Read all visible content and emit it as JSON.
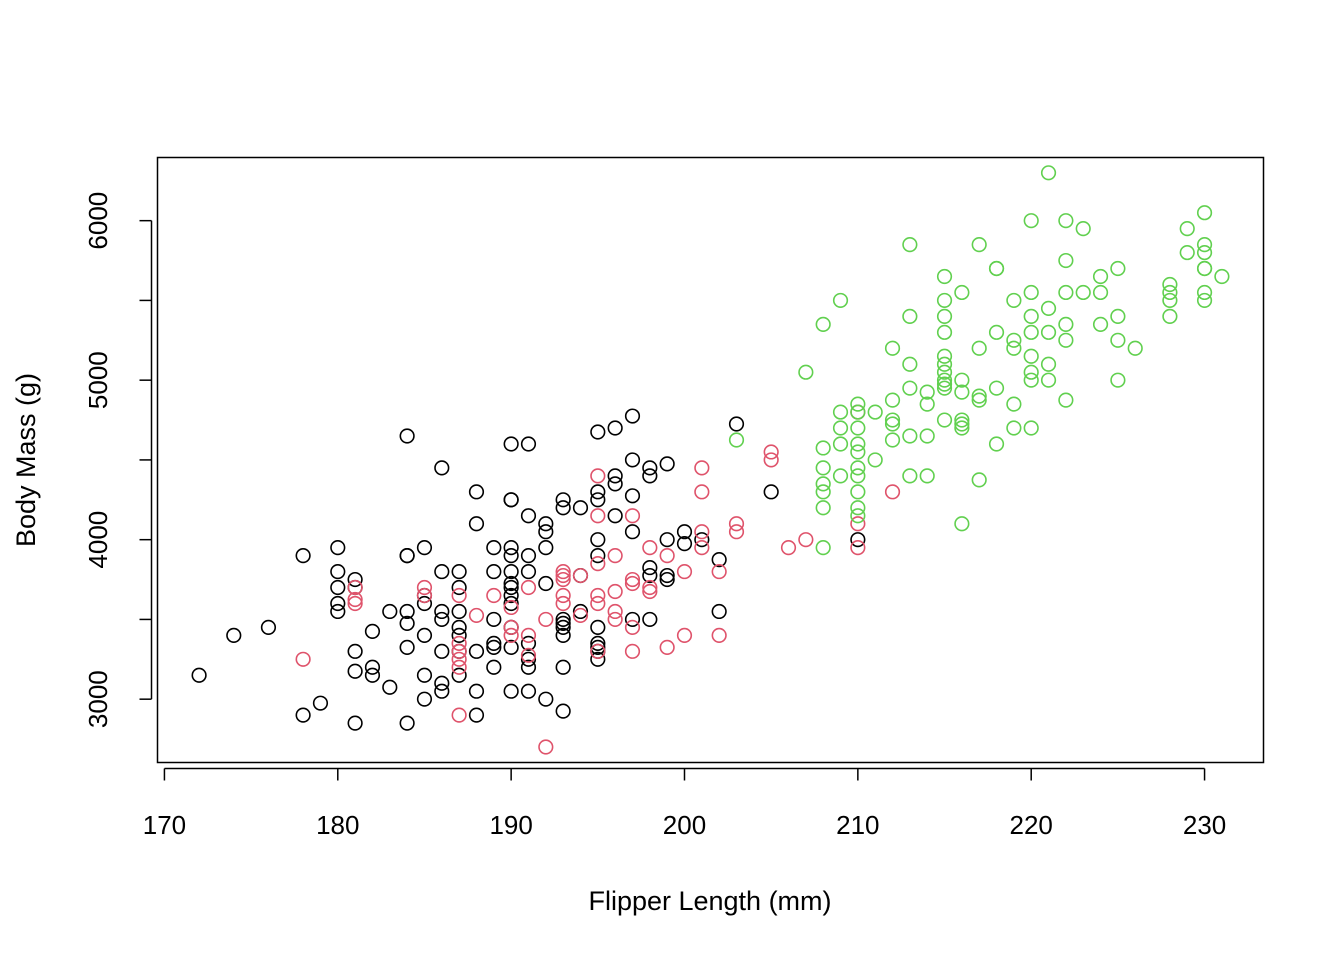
{
  "chart_data": {
    "type": "scatter",
    "title": "",
    "xlabel": "Flipper Length (mm)",
    "ylabel": "Body Mass (g)",
    "xlim": [
      169.6,
      233.4
    ],
    "ylim": [
      2603,
      6396
    ],
    "xticks": [
      170,
      180,
      190,
      200,
      210,
      220,
      230
    ],
    "yticks": [
      3000,
      4000,
      5000,
      6000
    ],
    "xtick_labels": [
      "170",
      "180",
      "190",
      "200",
      "210",
      "220",
      "230"
    ],
    "ytick_labels": [
      "3000",
      "4000",
      "5000",
      "6000"
    ],
    "grid": false,
    "legend": "none",
    "marker": "open-circle",
    "series": [
      {
        "color": "#000000",
        "points": [
          [
            172,
            3150
          ],
          [
            174,
            3400
          ],
          [
            176,
            3450
          ],
          [
            178,
            3900
          ],
          [
            178,
            2900
          ],
          [
            179,
            2975
          ],
          [
            180,
            3950
          ],
          [
            180,
            3800
          ],
          [
            180,
            3700
          ],
          [
            180,
            3600
          ],
          [
            180,
            3550
          ],
          [
            181,
            3750
          ],
          [
            181,
            3700
          ],
          [
            181,
            3300
          ],
          [
            181,
            3175
          ],
          [
            181,
            2850
          ],
          [
            182,
            3425
          ],
          [
            182,
            3200
          ],
          [
            182,
            3150
          ],
          [
            183,
            3550
          ],
          [
            183,
            3075
          ],
          [
            184,
            4650
          ],
          [
            184,
            3900
          ],
          [
            184,
            3900
          ],
          [
            184,
            3550
          ],
          [
            184,
            3475
          ],
          [
            184,
            3325
          ],
          [
            184,
            2850
          ],
          [
            185,
            3950
          ],
          [
            185,
            3650
          ],
          [
            185,
            3600
          ],
          [
            185,
            3400
          ],
          [
            185,
            3150
          ],
          [
            185,
            3000
          ],
          [
            186,
            4450
          ],
          [
            186,
            3800
          ],
          [
            186,
            3550
          ],
          [
            186,
            3500
          ],
          [
            186,
            3300
          ],
          [
            186,
            3100
          ],
          [
            186,
            3050
          ],
          [
            187,
            3800
          ],
          [
            187,
            3700
          ],
          [
            187,
            3550
          ],
          [
            187,
            3450
          ],
          [
            187,
            3400
          ],
          [
            187,
            3300
          ],
          [
            187,
            3150
          ],
          [
            188,
            4300
          ],
          [
            188,
            4100
          ],
          [
            188,
            3300
          ],
          [
            188,
            3050
          ],
          [
            188,
            2900
          ],
          [
            189,
            3950
          ],
          [
            189,
            3800
          ],
          [
            189,
            3500
          ],
          [
            189,
            3350
          ],
          [
            189,
            3325
          ],
          [
            189,
            3200
          ],
          [
            190,
            4600
          ],
          [
            190,
            4250
          ],
          [
            190,
            4250
          ],
          [
            190,
            3950
          ],
          [
            190,
            3900
          ],
          [
            190,
            3800
          ],
          [
            190,
            3725
          ],
          [
            190,
            3700
          ],
          [
            190,
            3650
          ],
          [
            190,
            3600
          ],
          [
            190,
            3450
          ],
          [
            190,
            3325
          ],
          [
            190,
            3050
          ],
          [
            191,
            4600
          ],
          [
            191,
            4150
          ],
          [
            191,
            3900
          ],
          [
            191,
            3800
          ],
          [
            191,
            3350
          ],
          [
            191,
            3250
          ],
          [
            191,
            3200
          ],
          [
            191,
            3050
          ],
          [
            192,
            4100
          ],
          [
            192,
            4050
          ],
          [
            192,
            3950
          ],
          [
            192,
            3725
          ],
          [
            192,
            3000
          ],
          [
            193,
            4250
          ],
          [
            193,
            4200
          ],
          [
            193,
            3500
          ],
          [
            193,
            3475
          ],
          [
            193,
            3450
          ],
          [
            193,
            3400
          ],
          [
            193,
            3200
          ],
          [
            193,
            2925
          ],
          [
            194,
            4200
          ],
          [
            194,
            3775
          ],
          [
            194,
            3550
          ],
          [
            195,
            4675
          ],
          [
            195,
            4300
          ],
          [
            195,
            4250
          ],
          [
            195,
            4000
          ],
          [
            195,
            3900
          ],
          [
            195,
            3450
          ],
          [
            195,
            3350
          ],
          [
            195,
            3325
          ],
          [
            195,
            3300
          ],
          [
            195,
            3250
          ],
          [
            196,
            4700
          ],
          [
            196,
            4400
          ],
          [
            196,
            4350
          ],
          [
            196,
            4150
          ],
          [
            197,
            4775
          ],
          [
            197,
            4500
          ],
          [
            197,
            4275
          ],
          [
            197,
            4050
          ],
          [
            197,
            3500
          ],
          [
            198,
            4450
          ],
          [
            198,
            4400
          ],
          [
            198,
            3825
          ],
          [
            198,
            3775
          ],
          [
            198,
            3500
          ],
          [
            199,
            4475
          ],
          [
            199,
            4000
          ],
          [
            199,
            3775
          ],
          [
            199,
            3750
          ],
          [
            200,
            4050
          ],
          [
            200,
            3975
          ],
          [
            201,
            4000
          ],
          [
            202,
            3875
          ],
          [
            202,
            3550
          ],
          [
            203,
            4725
          ],
          [
            205,
            4300
          ],
          [
            210,
            4000
          ]
        ]
      },
      {
        "color": "#DF536B",
        "points": [
          [
            178,
            3250
          ],
          [
            181,
            3700
          ],
          [
            181,
            3625
          ],
          [
            181,
            3600
          ],
          [
            185,
            3700
          ],
          [
            185,
            3650
          ],
          [
            187,
            3650
          ],
          [
            187,
            3350
          ],
          [
            187,
            3300
          ],
          [
            187,
            3250
          ],
          [
            187,
            3200
          ],
          [
            187,
            2900
          ],
          [
            188,
            3525
          ],
          [
            189,
            3650
          ],
          [
            190,
            3575
          ],
          [
            190,
            3450
          ],
          [
            190,
            3400
          ],
          [
            191,
            3700
          ],
          [
            191,
            3400
          ],
          [
            191,
            3275
          ],
          [
            192,
            3500
          ],
          [
            192,
            2700
          ],
          [
            193,
            3800
          ],
          [
            193,
            3775
          ],
          [
            193,
            3750
          ],
          [
            193,
            3650
          ],
          [
            193,
            3600
          ],
          [
            194,
            3775
          ],
          [
            194,
            3525
          ],
          [
            195,
            4400
          ],
          [
            195,
            4150
          ],
          [
            195,
            3850
          ],
          [
            195,
            3650
          ],
          [
            195,
            3600
          ],
          [
            195,
            3300
          ],
          [
            196,
            3900
          ],
          [
            196,
            3675
          ],
          [
            196,
            3550
          ],
          [
            196,
            3500
          ],
          [
            197,
            4150
          ],
          [
            197,
            3750
          ],
          [
            197,
            3725
          ],
          [
            197,
            3450
          ],
          [
            197,
            3300
          ],
          [
            198,
            3950
          ],
          [
            198,
            3700
          ],
          [
            198,
            3675
          ],
          [
            199,
            3900
          ],
          [
            199,
            3325
          ],
          [
            200,
            3800
          ],
          [
            200,
            3400
          ],
          [
            201,
            4450
          ],
          [
            201,
            4300
          ],
          [
            201,
            4050
          ],
          [
            201,
            3950
          ],
          [
            202,
            3800
          ],
          [
            202,
            3400
          ],
          [
            203,
            4100
          ],
          [
            203,
            4050
          ],
          [
            205,
            4550
          ],
          [
            205,
            4500
          ],
          [
            206,
            3950
          ],
          [
            207,
            4000
          ],
          [
            210,
            4800
          ],
          [
            210,
            4100
          ],
          [
            210,
            3950
          ],
          [
            212,
            4300
          ]
        ]
      },
      {
        "color": "#61D04F",
        "points": [
          [
            203,
            4625
          ],
          [
            207,
            5050
          ],
          [
            208,
            5350
          ],
          [
            208,
            4575
          ],
          [
            208,
            4450
          ],
          [
            208,
            4350
          ],
          [
            208,
            4300
          ],
          [
            208,
            4200
          ],
          [
            208,
            3950
          ],
          [
            209,
            5500
          ],
          [
            209,
            4800
          ],
          [
            209,
            4700
          ],
          [
            209,
            4600
          ],
          [
            209,
            4400
          ],
          [
            210,
            4850
          ],
          [
            210,
            4800
          ],
          [
            210,
            4700
          ],
          [
            210,
            4600
          ],
          [
            210,
            4550
          ],
          [
            210,
            4450
          ],
          [
            210,
            4400
          ],
          [
            210,
            4300
          ],
          [
            210,
            4200
          ],
          [
            210,
            4150
          ],
          [
            211,
            4800
          ],
          [
            211,
            4500
          ],
          [
            212,
            5200
          ],
          [
            212,
            4875
          ],
          [
            212,
            4750
          ],
          [
            212,
            4725
          ],
          [
            212,
            4625
          ],
          [
            213,
            5850
          ],
          [
            213,
            5400
          ],
          [
            213,
            5100
          ],
          [
            213,
            4950
          ],
          [
            213,
            4650
          ],
          [
            213,
            4400
          ],
          [
            214,
            4925
          ],
          [
            214,
            4850
          ],
          [
            214,
            4650
          ],
          [
            214,
            4400
          ],
          [
            215,
            5650
          ],
          [
            215,
            5500
          ],
          [
            215,
            5400
          ],
          [
            215,
            5300
          ],
          [
            215,
            5150
          ],
          [
            215,
            5100
          ],
          [
            215,
            5050
          ],
          [
            215,
            5000
          ],
          [
            215,
            4975
          ],
          [
            215,
            4950
          ],
          [
            215,
            4750
          ],
          [
            216,
            5550
          ],
          [
            216,
            5000
          ],
          [
            216,
            4925
          ],
          [
            216,
            4750
          ],
          [
            216,
            4725
          ],
          [
            216,
            4700
          ],
          [
            216,
            4100
          ],
          [
            217,
            5850
          ],
          [
            217,
            5200
          ],
          [
            217,
            4900
          ],
          [
            217,
            4875
          ],
          [
            217,
            4375
          ],
          [
            218,
            5700
          ],
          [
            218,
            5700
          ],
          [
            218,
            5300
          ],
          [
            218,
            4950
          ],
          [
            218,
            4600
          ],
          [
            219,
            5500
          ],
          [
            219,
            5250
          ],
          [
            219,
            5200
          ],
          [
            219,
            4850
          ],
          [
            219,
            4700
          ],
          [
            220,
            6000
          ],
          [
            220,
            5550
          ],
          [
            220,
            5400
          ],
          [
            220,
            5300
          ],
          [
            220,
            5150
          ],
          [
            220,
            5050
          ],
          [
            220,
            5000
          ],
          [
            220,
            4700
          ],
          [
            221,
            6300
          ],
          [
            221,
            5450
          ],
          [
            221,
            5300
          ],
          [
            221,
            5100
          ],
          [
            221,
            5000
          ],
          [
            222,
            6000
          ],
          [
            222,
            5750
          ],
          [
            222,
            5550
          ],
          [
            222,
            5350
          ],
          [
            222,
            5250
          ],
          [
            222,
            4875
          ],
          [
            223,
            5950
          ],
          [
            223,
            5550
          ],
          [
            224,
            5650
          ],
          [
            224,
            5550
          ],
          [
            224,
            5350
          ],
          [
            225,
            5700
          ],
          [
            225,
            5400
          ],
          [
            225,
            5250
          ],
          [
            225,
            5000
          ],
          [
            226,
            5200
          ],
          [
            228,
            5600
          ],
          [
            228,
            5550
          ],
          [
            228,
            5500
          ],
          [
            228,
            5400
          ],
          [
            229,
            5950
          ],
          [
            229,
            5800
          ],
          [
            230,
            6050
          ],
          [
            230,
            5850
          ],
          [
            230,
            5800
          ],
          [
            230,
            5700
          ],
          [
            230,
            5700
          ],
          [
            230,
            5550
          ],
          [
            230,
            5500
          ],
          [
            231,
            5650
          ]
        ]
      }
    ]
  }
}
